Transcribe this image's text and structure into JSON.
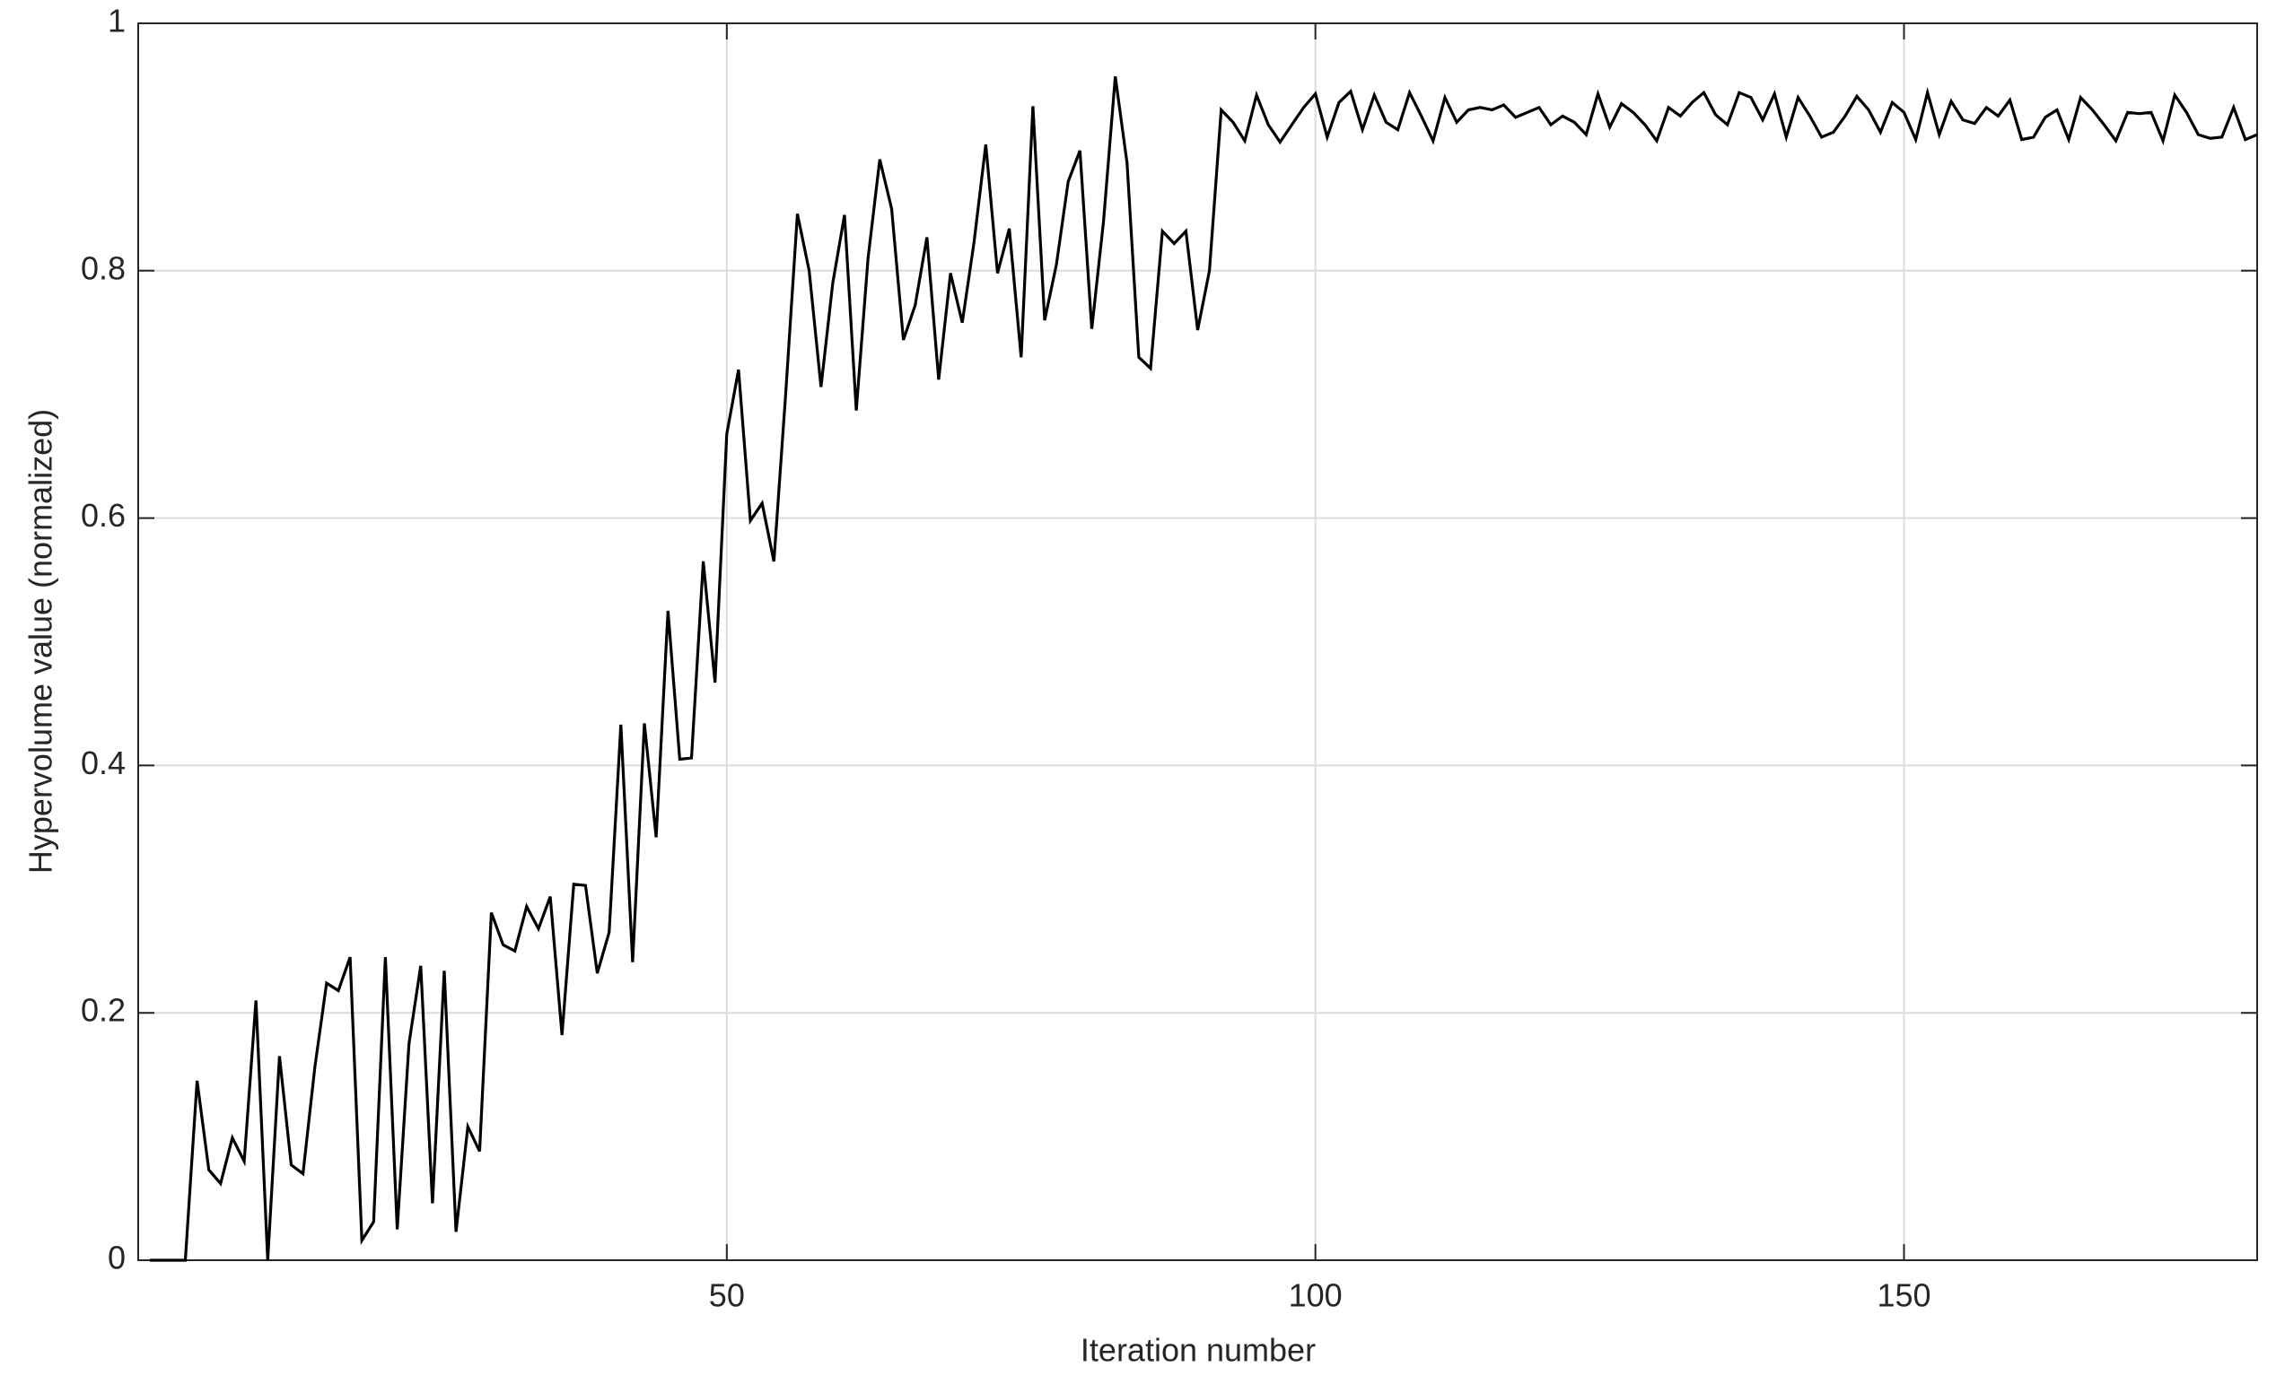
{
  "chart_data": {
    "type": "line",
    "xlabel": "Iteration number",
    "ylabel": "Hypervolume value (normalized)",
    "x": [
      1,
      2,
      3,
      4,
      5,
      6,
      7,
      8,
      9,
      10,
      11,
      12,
      13,
      14,
      15,
      16,
      17,
      18,
      19,
      20,
      21,
      22,
      23,
      24,
      25,
      26,
      27,
      28,
      29,
      30,
      31,
      32,
      33,
      34,
      35,
      36,
      37,
      38,
      39,
      40,
      41,
      42,
      43,
      44,
      45,
      46,
      47,
      48,
      49,
      50,
      51,
      52,
      53,
      54,
      55,
      56,
      57,
      58,
      59,
      60,
      61,
      62,
      63,
      64,
      65,
      66,
      67,
      68,
      69,
      70,
      71,
      72,
      73,
      74,
      75,
      76,
      77,
      78,
      79,
      80,
      81,
      82,
      83,
      84,
      85,
      86,
      87,
      88,
      89,
      90,
      91,
      92,
      93,
      94,
      95,
      96,
      97,
      98,
      99,
      100,
      101,
      102,
      103,
      104,
      105,
      106,
      107,
      108,
      109,
      110,
      111,
      112,
      113,
      114,
      115,
      116,
      117,
      118,
      119,
      120,
      121,
      122,
      123,
      124,
      125,
      126,
      127,
      128,
      129,
      130,
      131,
      132,
      133,
      134,
      135,
      136,
      137,
      138,
      139,
      140,
      141,
      142,
      143,
      144,
      145,
      146,
      147,
      148,
      149,
      150,
      151,
      152,
      153,
      154,
      155,
      156,
      157,
      158,
      159,
      160,
      161,
      162,
      163,
      164,
      165,
      166,
      167,
      168,
      169,
      170,
      171,
      172,
      173,
      174,
      175,
      176,
      177,
      178,
      179,
      180
    ],
    "values": [
      0,
      0,
      0,
      0,
      0.145,
      0.073,
      0.062,
      0.099,
      0.08,
      0.21,
      0,
      0.165,
      0.077,
      0.07,
      0.156,
      0.224,
      0.218,
      0.245,
      0.016,
      0.031,
      0.245,
      0.025,
      0.175,
      0.238,
      0.046,
      0.234,
      0.023,
      0.108,
      0.088,
      0.281,
      0.255,
      0.25,
      0.286,
      0.268,
      0.294,
      0.182,
      0.304,
      0.303,
      0.232,
      0.265,
      0.433,
      0.241,
      0.434,
      0.342,
      0.525,
      0.405,
      0.406,
      0.565,
      0.467,
      0.668,
      0.72,
      0.598,
      0.612,
      0.565,
      0.7,
      0.846,
      0.8,
      0.706,
      0.79,
      0.845,
      0.687,
      0.81,
      0.89,
      0.85,
      0.744,
      0.772,
      0.827,
      0.712,
      0.798,
      0.758,
      0.823,
      0.902,
      0.798,
      0.834,
      0.73,
      0.933,
      0.76,
      0.805,
      0.872,
      0.897,
      0.753,
      0.84,
      0.957,
      0.887,
      0.73,
      0.721,
      0.832,
      0.822,
      0.832,
      0.752,
      0.8,
      0.93,
      0.92,
      0.905,
      0.942,
      0.918,
      0.904,
      0.918,
      0.932,
      0.943,
      0.908,
      0.936,
      0.945,
      0.914,
      0.942,
      0.92,
      0.914,
      0.944,
      0.925,
      0.905,
      0.94,
      0.92,
      0.93,
      0.932,
      0.93,
      0.934,
      0.924,
      0.928,
      0.932,
      0.918,
      0.925,
      0.92,
      0.91,
      0.943,
      0.916,
      0.935,
      0.928,
      0.918,
      0.905,
      0.932,
      0.925,
      0.936,
      0.944,
      0.926,
      0.918,
      0.944,
      0.94,
      0.922,
      0.943,
      0.908,
      0.94,
      0.925,
      0.908,
      0.912,
      0.925,
      0.941,
      0.93,
      0.912,
      0.936,
      0.928,
      0.906,
      0.944,
      0.91,
      0.937,
      0.922,
      0.919,
      0.932,
      0.925,
      0.938,
      0.906,
      0.908,
      0.924,
      0.93,
      0.906,
      0.94,
      0.93,
      0.918,
      0.905,
      0.928,
      0.927,
      0.928,
      0.905,
      0.942,
      0.928,
      0.91,
      0.907,
      0.908,
      0.932,
      0.906,
      0.91
    ],
    "color": "#000000",
    "xlim": [
      0,
      180
    ],
    "xticks": [
      50,
      100,
      150
    ],
    "ylim": [
      0,
      1
    ],
    "yticks": [
      0,
      0.2,
      0.4,
      0.6,
      0.8,
      1
    ],
    "grid": true
  }
}
